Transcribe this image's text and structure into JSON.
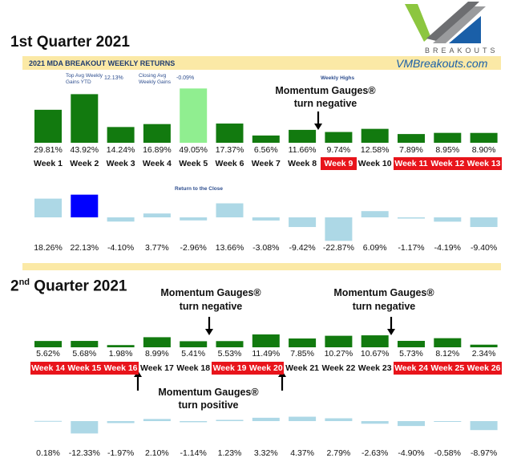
{
  "logo": {
    "letters": "VM",
    "tagline": "BREAKOUTS"
  },
  "site": "VMBreakouts.com",
  "q1": {
    "title": "1st Quarter 2021",
    "banner": "2021 MDA BREAKOUT WEEKLY RETURNS",
    "top_avg_label": "Top Avg Weekly Gains YTD",
    "top_avg_value": "12.13%",
    "closing_avg_label": "Closing Avg Weekly Gains",
    "closing_avg_value": "-0.09%",
    "weekly_highs_label": "Weekly Highs",
    "return_close_label": "Return to the Close",
    "annotation_line1": "Momentum Gauges®",
    "annotation_line2": "turn negative"
  },
  "q2": {
    "title_prefix": "2",
    "title_sup": "nd",
    "title_suffix": " Quarter 2021",
    "annotation_neg1_line1": "Momentum Gauges®",
    "annotation_neg1_line2": "turn negative",
    "annotation_neg2_line1": "Momentum Gauges®",
    "annotation_neg2_line2": "turn negative",
    "annotation_pos_line1": "Momentum Gauges®",
    "annotation_pos_line2": "turn positive"
  },
  "colors": {
    "green": "#127a0f",
    "lightgreen": "#90ee90",
    "lightblue": "#add8e6",
    "blue": "#0000ff",
    "red": "#e8141b"
  },
  "chart_data": [
    {
      "type": "bar",
      "title": "Weekly Highs",
      "categories": [
        "Week 1",
        "Week 2",
        "Week 3",
        "Week 4",
        "Week 5",
        "Week 6",
        "Week 7",
        "Week 8",
        "Week 9",
        "Week 10",
        "Week 11",
        "Week 12",
        "Week 13"
      ],
      "values": [
        29.81,
        43.92,
        14.24,
        16.89,
        49.05,
        17.37,
        6.56,
        11.66,
        9.74,
        12.58,
        7.89,
        8.95,
        8.9
      ],
      "labels": [
        "29.81%",
        "43.92%",
        "14.24%",
        "16.89%",
        "49.05%",
        "17.37%",
        "6.56%",
        "11.66%",
        "9.74%",
        "12.58%",
        "7.89%",
        "8.95%",
        "8.90%"
      ],
      "highlight_weeks": [
        8,
        10,
        11,
        12
      ],
      "bar_color": "green",
      "special_colors": {
        "4": "lightgreen"
      }
    },
    {
      "type": "bar",
      "title": "Return to the Close",
      "categories": [
        "Week 1",
        "Week 2",
        "Week 3",
        "Week 4",
        "Week 5",
        "Week 6",
        "Week 7",
        "Week 8",
        "Week 9",
        "Week 10",
        "Week 11",
        "Week 12",
        "Week 13"
      ],
      "values": [
        18.26,
        22.13,
        -4.1,
        3.77,
        -2.96,
        13.66,
        -3.08,
        -9.42,
        -22.87,
        6.09,
        -1.17,
        -4.19,
        -9.4
      ],
      "labels": [
        "18.26%",
        "22.13%",
        "-4.10%",
        "3.77%",
        "-2.96%",
        "13.66%",
        "-3.08%",
        "-9.42%",
        "-22.87%",
        "6.09%",
        "-1.17%",
        "-4.19%",
        "-9.40%"
      ],
      "bar_color": "lightblue",
      "special_colors": {
        "1": "blue"
      }
    },
    {
      "type": "bar",
      "categories": [
        "Week 14",
        "Week 15",
        "Week 16",
        "Week 17",
        "Week 18",
        "Week 19",
        "Week 20",
        "Week 21",
        "Week 22",
        "Week 23",
        "Week 24",
        "Week 25",
        "Week 26"
      ],
      "values": [
        5.62,
        5.68,
        1.98,
        8.99,
        5.41,
        5.53,
        11.49,
        7.85,
        10.27,
        10.67,
        5.73,
        8.12,
        2.34
      ],
      "labels": [
        "5.62%",
        "5.68%",
        "1.98%",
        "8.99%",
        "5.41%",
        "5.53%",
        "11.49%",
        "7.85%",
        "10.27%",
        "10.67%",
        "5.73%",
        "8.12%",
        "2.34%"
      ],
      "highlight_weeks": [
        0,
        1,
        2,
        5,
        6,
        10,
        11,
        12
      ],
      "bar_color": "green"
    },
    {
      "type": "bar",
      "categories": [
        "Week 14",
        "Week 15",
        "Week 16",
        "Week 17",
        "Week 18",
        "Week 19",
        "Week 20",
        "Week 21",
        "Week 22",
        "Week 23",
        "Week 24",
        "Week 25",
        "Week 26"
      ],
      "values": [
        0.18,
        -12.33,
        -1.97,
        2.1,
        -1.14,
        1.23,
        3.32,
        4.37,
        2.79,
        -2.63,
        -4.9,
        -0.58,
        -8.97
      ],
      "labels": [
        "0.18%",
        "-12.33%",
        "-1.97%",
        "2.10%",
        "-1.14%",
        "1.23%",
        "3.32%",
        "4.37%",
        "2.79%",
        "-2.63%",
        "-4.90%",
        "-0.58%",
        "-8.97%"
      ],
      "bar_color": "lightblue"
    }
  ]
}
